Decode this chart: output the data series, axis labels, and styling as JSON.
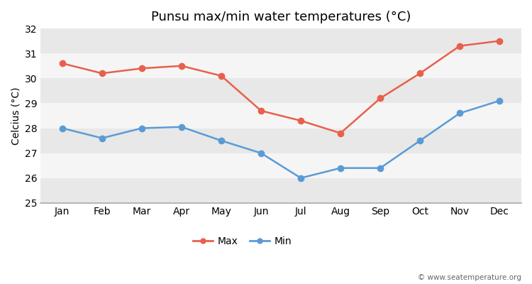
{
  "title": "Punsu max/min water temperatures (°C)",
  "ylabel": "Celcius (°C)",
  "months": [
    "Jan",
    "Feb",
    "Mar",
    "Apr",
    "May",
    "Jun",
    "Jul",
    "Aug",
    "Sep",
    "Oct",
    "Nov",
    "Dec"
  ],
  "max_temps": [
    30.6,
    30.2,
    30.4,
    30.5,
    30.1,
    28.7,
    28.3,
    27.8,
    29.2,
    30.2,
    31.3,
    31.5
  ],
  "min_temps": [
    28.0,
    27.6,
    28.0,
    28.05,
    27.5,
    27.0,
    26.0,
    26.4,
    26.4,
    27.5,
    28.6,
    29.1
  ],
  "max_color": "#e8604c",
  "min_color": "#5b9bd5",
  "ylim": [
    25,
    32
  ],
  "yticks": [
    25,
    26,
    27,
    28,
    29,
    30,
    31,
    32
  ],
  "band_colors": [
    "#e8e8e8",
    "#f5f5f5"
  ],
  "figure_bg": "#ffffff",
  "plot_bg": "#ffffff",
  "watermark": "© www.seatemperature.org",
  "legend_max": "Max",
  "legend_min": "Min",
  "title_fontsize": 13,
  "label_fontsize": 10,
  "tick_fontsize": 10
}
